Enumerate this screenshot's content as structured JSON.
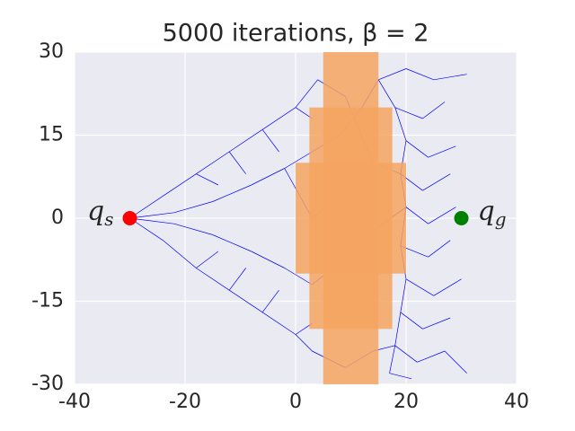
{
  "chart_data": {
    "type": "tree",
    "title": "5000 iterations, β = 2",
    "xlim": [
      -40,
      40
    ],
    "ylim": [
      -30,
      30
    ],
    "xticks": [
      -40,
      -20,
      0,
      20,
      40
    ],
    "yticks": [
      -30,
      -15,
      0,
      15,
      30
    ],
    "grid": true,
    "edge_color": "#0000ff",
    "obstacle_color": "#f4a460",
    "obstacles": [
      [
        5,
        -30,
        15,
        30
      ],
      [
        2.5,
        -20,
        17.5,
        20
      ],
      [
        0,
        -10,
        20,
        10
      ]
    ],
    "start": {
      "label": "q",
      "subscript": "s",
      "x": -30,
      "y": 0,
      "color": "#ff0000"
    },
    "goal": {
      "label": "q",
      "subscript": "g",
      "x": 30,
      "y": 0,
      "color": "#008000"
    },
    "edges": [
      [
        -30,
        0,
        -24,
        4
      ],
      [
        -24,
        4,
        -18,
        8
      ],
      [
        -18,
        8,
        -12,
        12
      ],
      [
        -12,
        12,
        -6,
        16
      ],
      [
        -6,
        16,
        0,
        20
      ],
      [
        0,
        20,
        4,
        25
      ],
      [
        -30,
        0,
        -24,
        -4
      ],
      [
        -24,
        -4,
        -18,
        -9
      ],
      [
        -18,
        -9,
        -12,
        -13
      ],
      [
        -12,
        -13,
        -6,
        -17
      ],
      [
        -6,
        -17,
        0,
        -21
      ],
      [
        0,
        -21,
        3,
        -24
      ],
      [
        -30,
        0,
        -22,
        1
      ],
      [
        -22,
        1,
        -15,
        3
      ],
      [
        -15,
        3,
        -8,
        6
      ],
      [
        -8,
        6,
        -2,
        9
      ],
      [
        -2,
        9,
        3,
        12
      ],
      [
        -30,
        0,
        -22,
        -1
      ],
      [
        -22,
        -1,
        -15,
        -3
      ],
      [
        -15,
        -3,
        -8,
        -6
      ],
      [
        -8,
        -6,
        -2,
        -9
      ],
      [
        -2,
        -9,
        3,
        -12
      ],
      [
        -18,
        8,
        -14,
        6
      ],
      [
        -12,
        12,
        -9,
        8
      ],
      [
        -6,
        16,
        -3,
        12
      ],
      [
        -18,
        -9,
        -14,
        -6
      ],
      [
        -12,
        -13,
        -9,
        -9
      ],
      [
        -6,
        -17,
        -3,
        -13
      ],
      [
        0,
        20,
        3,
        18
      ],
      [
        0,
        -21,
        3,
        -19
      ],
      [
        15,
        25,
        20,
        27
      ],
      [
        20,
        27,
        25,
        25
      ],
      [
        25,
        25,
        31,
        26
      ],
      [
        18,
        20,
        23,
        18
      ],
      [
        23,
        18,
        27,
        21
      ],
      [
        20,
        14,
        24,
        11
      ],
      [
        24,
        11,
        29,
        13
      ],
      [
        19,
        8,
        23,
        5
      ],
      [
        23,
        5,
        28,
        8
      ],
      [
        20,
        2,
        24,
        -1
      ],
      [
        24,
        -1,
        29,
        2
      ],
      [
        19,
        -5,
        24,
        -7
      ],
      [
        24,
        -7,
        28,
        -4
      ],
      [
        20,
        -11,
        25,
        -14
      ],
      [
        25,
        -14,
        30,
        -11
      ],
      [
        19,
        -17,
        23,
        -20
      ],
      [
        23,
        -20,
        28,
        -18
      ],
      [
        18,
        -23,
        22,
        -26
      ],
      [
        22,
        -26,
        27,
        -24
      ],
      [
        27,
        -24,
        31,
        -28
      ],
      [
        17,
        -28,
        21,
        -29
      ],
      [
        15,
        25,
        18,
        20
      ],
      [
        18,
        20,
        20,
        14
      ],
      [
        20,
        14,
        19,
        8
      ],
      [
        19,
        8,
        20,
        2
      ],
      [
        20,
        2,
        19,
        -5
      ],
      [
        19,
        -5,
        20,
        -11
      ],
      [
        20,
        -11,
        19,
        -17
      ],
      [
        19,
        -17,
        18,
        -23
      ],
      [
        18,
        -23,
        17,
        -28
      ],
      [
        3,
        12,
        8,
        15
      ],
      [
        8,
        15,
        12,
        20
      ],
      [
        12,
        20,
        15,
        25
      ],
      [
        3,
        -12,
        8,
        -8
      ],
      [
        8,
        -8,
        13,
        -3
      ],
      [
        13,
        -3,
        20,
        2
      ],
      [
        4,
        25,
        9,
        22
      ],
      [
        3,
        -24,
        9,
        -27
      ],
      [
        9,
        -27,
        14,
        -24
      ],
      [
        14,
        -24,
        18,
        -23
      ],
      [
        3,
        0,
        8,
        4
      ],
      [
        8,
        4,
        14,
        -1
      ],
      [
        -2,
        9,
        3,
        0
      ],
      [
        9,
        22,
        14,
        10
      ],
      [
        14,
        10,
        19,
        8
      ]
    ]
  }
}
